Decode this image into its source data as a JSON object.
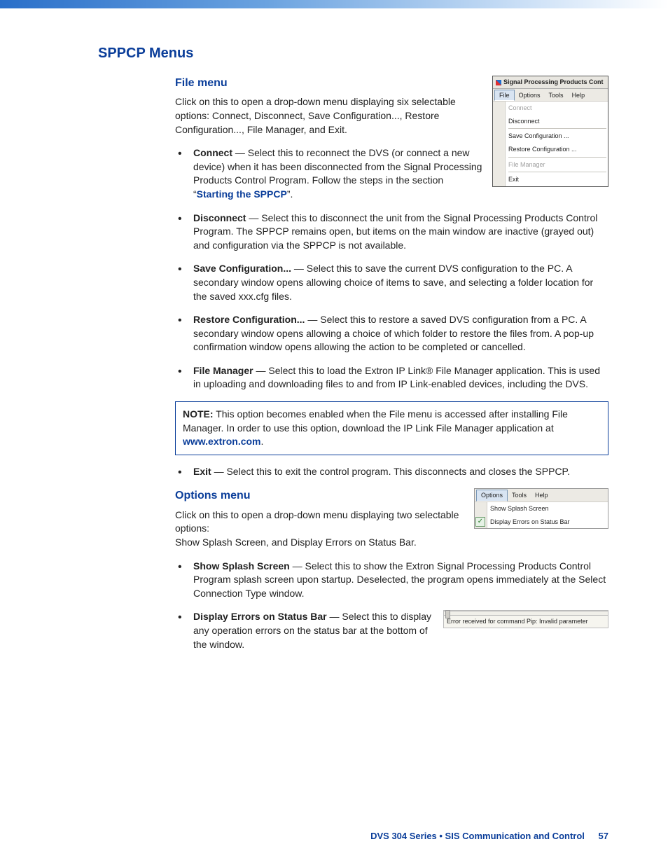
{
  "headings": {
    "main": "SPPCP Menus",
    "file": "File menu",
    "options": "Options menu"
  },
  "file_section": {
    "intro": "Click on this to open a drop-down menu displaying six selectable options:  Connect, Disconnect, Save Configuration..., Restore Configuration..., File Manager, and Exit.",
    "connect_label": "Connect",
    "connect_text1": " — Select this to reconnect the DVS (or connect a new device) when it has been disconnected from the Signal Processing Products Control Program. Follow the steps in the section “",
    "connect_link": "Starting the SPPCP",
    "connect_text2": "”.",
    "disconnect_label": "Disconnect",
    "disconnect_text": " — Select this to disconnect the unit from the Signal Processing Products Control Program. The SPPCP remains open, but items on the main window are inactive (grayed out) and configuration via the SPPCP is not available.",
    "savecfg_label": "Save Configuration...",
    "savecfg_text": " — Select this to save the current DVS configuration to the PC. A secondary window opens allowing choice of items to save, and selecting a folder location for the saved xxx.cfg files.",
    "restorecfg_label": "Restore Configuration...",
    "restorecfg_text": " — Select this to restore a saved DVS configuration from a PC. A secondary window opens allowing a choice of which folder to restore the files from. A pop-up confirmation window opens allowing the action to be completed or cancelled.",
    "filemgr_label": "File Manager",
    "filemgr_text": " — Select this to load the Extron IP Link® File Manager application. This is used in uploading and downloading files to and from IP Link-enabled devices, including the DVS.",
    "exit_label": "Exit",
    "exit_text": " — Select this to exit the control program. This disconnects and closes the SPPCP."
  },
  "note": {
    "label": "NOTE:",
    "text1": "This option becomes enabled when the File menu is accessed after installing File Manager. In order to use this option, download the IP Link File Manager application at ",
    "link": "www.extron.com",
    "text2": "."
  },
  "options_section": {
    "intro1": "Click on this to open a drop-down menu displaying two selectable options:",
    "intro2": "Show Splash Screen, and Display Errors on Status Bar.",
    "splash_label": "Show Splash Screen",
    "splash_text": " — Select this to show the Extron Signal Processing Products Control Program splash screen upon startup. Deselected, the program opens immediately at the Select Connection Type window.",
    "errors_label": "Display Errors on Status Bar",
    "errors_text": " — Select this to display any operation errors on the status bar at the bottom of the window."
  },
  "screenshot_file": {
    "title": "Signal Processing Products Cont",
    "menubar": {
      "file": "File",
      "options": "Options",
      "tools": "Tools",
      "help": "Help"
    },
    "items": {
      "connect": "Connect",
      "disconnect": "Disconnect",
      "save": "Save Configuration ...",
      "restore": "Restore Configuration ...",
      "filemgr": "File Manager",
      "exit": "Exit"
    }
  },
  "screenshot_options": {
    "menubar": {
      "options": "Options",
      "tools": "Tools",
      "help": "Help"
    },
    "items": {
      "splash": "Show Splash Screen",
      "errors": "Display Errors on Status Bar"
    }
  },
  "screenshot_status": {
    "text": "Error received for command Pip: Invalid parameter"
  },
  "footer": {
    "title": "DVS 304 Series • SIS Communication and Control",
    "page": "57"
  },
  "colors": {
    "heading": "#0b3e9a",
    "link": "#0b3e9a",
    "note_border": "#0b3e9a",
    "body_text": "#222222"
  }
}
